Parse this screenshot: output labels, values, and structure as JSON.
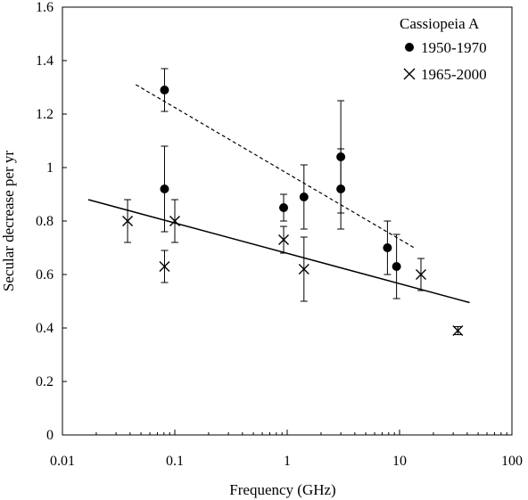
{
  "chart_data": {
    "type": "scatter",
    "title": "",
    "xlabel": "Frequency (GHz)",
    "ylabel": "Secular decrease per yr",
    "x_scale": "log",
    "xlim": [
      0.01,
      100
    ],
    "ylim": [
      0,
      1.6
    ],
    "x_ticks": [
      {
        "value": 0.01,
        "label": "0.01"
      },
      {
        "value": 0.1,
        "label": "0.1"
      },
      {
        "value": 1,
        "label": "1"
      },
      {
        "value": 10,
        "label": "10"
      },
      {
        "value": 100,
        "label": "100"
      }
    ],
    "y_ticks": [
      {
        "value": 0,
        "label": "0"
      },
      {
        "value": 0.2,
        "label": "0.2"
      },
      {
        "value": 0.4,
        "label": "0.4"
      },
      {
        "value": 0.6,
        "label": "0.6"
      },
      {
        "value": 0.8,
        "label": "0.8"
      },
      {
        "value": 1.0,
        "label": "1"
      },
      {
        "value": 1.2,
        "label": "1.2"
      },
      {
        "value": 1.4,
        "label": "1.4"
      },
      {
        "value": 1.6,
        "label": "1.6"
      }
    ],
    "legend": {
      "title": "Cassiopeia A",
      "placement": "top-right"
    },
    "series": [
      {
        "name": "1950-1970",
        "marker": "filled-circle",
        "color": "#000000",
        "points": [
          {
            "x": 0.081,
            "y": 1.29,
            "err": 0.08
          },
          {
            "x": 0.081,
            "y": 0.92,
            "err": 0.16
          },
          {
            "x": 0.93,
            "y": 0.85,
            "err": 0.05
          },
          {
            "x": 1.41,
            "y": 0.89,
            "err": 0.12
          },
          {
            "x": 3.0,
            "y": 1.04,
            "err": 0.21
          },
          {
            "x": 3.0,
            "y": 0.92,
            "err": 0.15
          },
          {
            "x": 7.8,
            "y": 0.7,
            "err": 0.1
          },
          {
            "x": 9.4,
            "y": 0.63,
            "err": 0.12
          }
        ],
        "trend": {
          "style": "dashed",
          "x": [
            0.045,
            13.5
          ],
          "y": [
            1.31,
            0.7
          ]
        }
      },
      {
        "name": "1965-2000",
        "marker": "cross",
        "color": "#000000",
        "points": [
          {
            "x": 0.038,
            "y": 0.8,
            "err": 0.08
          },
          {
            "x": 0.081,
            "y": 0.63,
            "err": 0.06
          },
          {
            "x": 0.1,
            "y": 0.8,
            "err": 0.08
          },
          {
            "x": 0.93,
            "y": 0.73,
            "err": 0.05
          },
          {
            "x": 1.41,
            "y": 0.62,
            "err": 0.12
          },
          {
            "x": 15.5,
            "y": 0.6,
            "err": 0.06
          },
          {
            "x": 33,
            "y": 0.39,
            "err": 0.015
          }
        ],
        "trend": {
          "style": "solid",
          "x": [
            0.017,
            42
          ],
          "y": [
            0.88,
            0.495
          ]
        }
      }
    ]
  }
}
